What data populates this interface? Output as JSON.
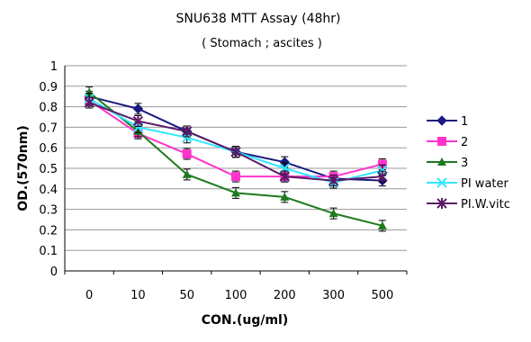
{
  "chart_data": {
    "type": "line",
    "title": "SNU638 MTT Assay (48hr)",
    "subtitle": "( Stomach ; ascites  )",
    "xlabel": "CON.(ug/ml)",
    "ylabel": "OD.(570nm)",
    "ylim": [
      0,
      1
    ],
    "yticks": [
      "0",
      "0.1",
      "0.2",
      "0.3",
      "0.4",
      "0.5",
      "0.6",
      "0.7",
      "0.8",
      "0.9",
      "1"
    ],
    "categories": [
      "0",
      "10",
      "50",
      "100",
      "200",
      "300",
      "500"
    ],
    "grid": "horizontal",
    "legend_position": "right",
    "series": [
      {
        "name": "1",
        "color": "#1a1a80",
        "marker": "diamond",
        "values": [
          0.85,
          0.79,
          0.68,
          0.58,
          0.53,
          0.45,
          0.44
        ]
      },
      {
        "name": "2",
        "color": "#ff33cc",
        "marker": "square",
        "values": [
          0.83,
          0.67,
          0.57,
          0.46,
          0.46,
          0.46,
          0.52
        ]
      },
      {
        "name": "3",
        "color": "#1e7a1e",
        "marker": "triangle",
        "values": [
          0.87,
          0.68,
          0.47,
          0.38,
          0.36,
          0.28,
          0.22
        ]
      },
      {
        "name": "PI water",
        "color": "#33e6ff",
        "marker": "x",
        "values": [
          0.84,
          0.7,
          0.65,
          0.58,
          0.5,
          0.43,
          0.49
        ]
      },
      {
        "name": "PI.W.vitc",
        "color": "#5c1a66",
        "marker": "star",
        "values": [
          0.82,
          0.73,
          0.68,
          0.58,
          0.46,
          0.44,
          0.46
        ]
      }
    ]
  }
}
